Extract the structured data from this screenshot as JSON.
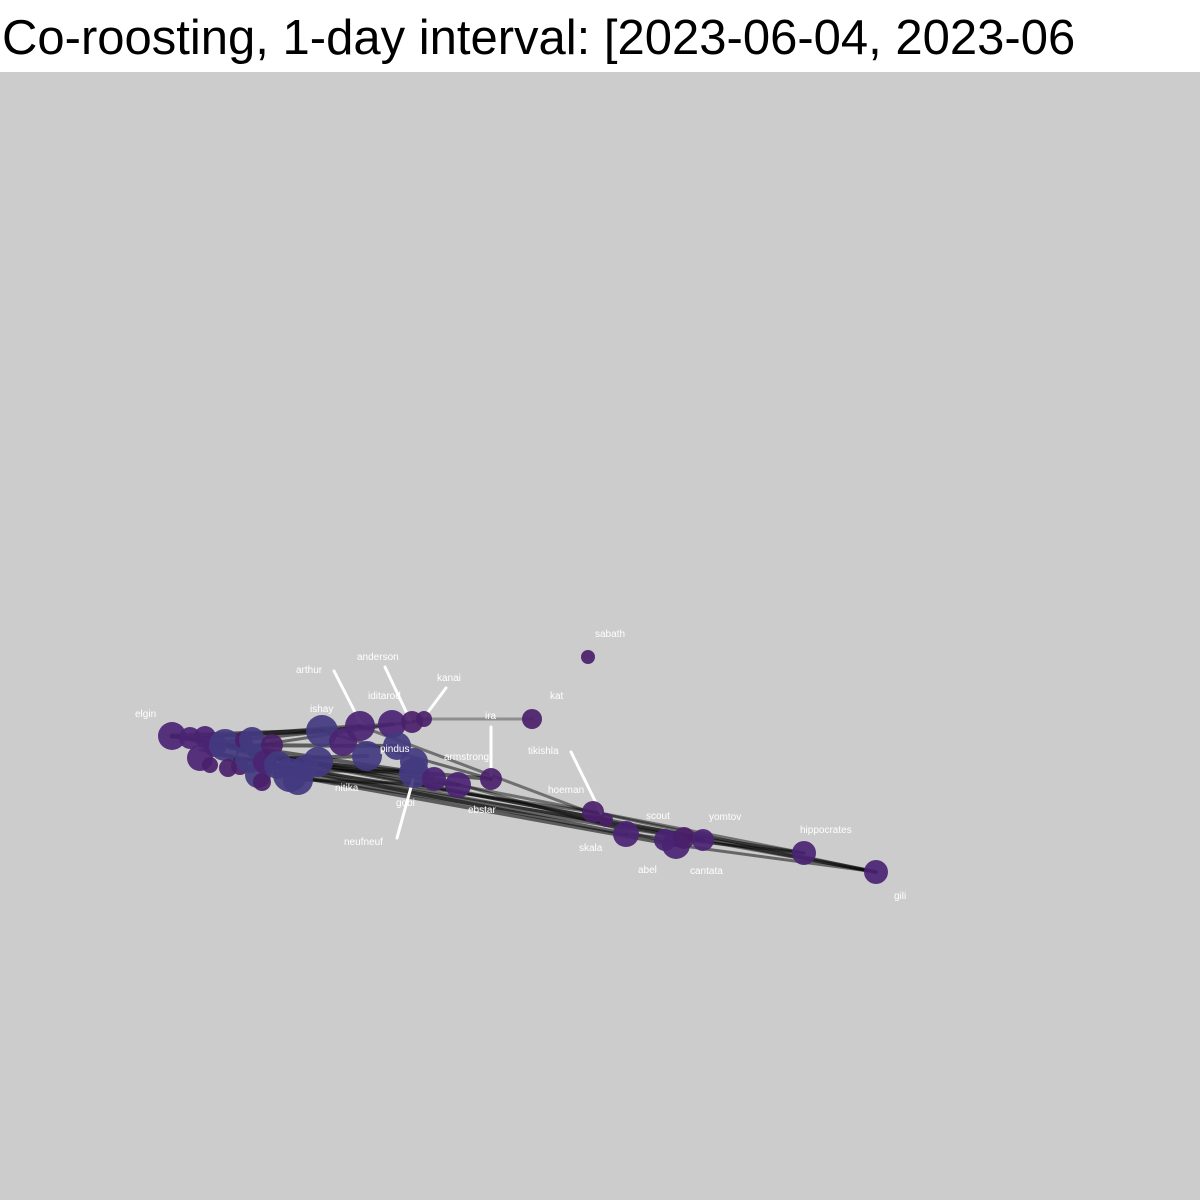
{
  "title": "Co-roosting, 1-day interval: [2023-06-04, 2023-06",
  "colors": {
    "background": "#cccccc",
    "node_fill": "#4a2473",
    "node_fill_large": "#433a80",
    "label": "#ffffff",
    "edge": "#000000",
    "leader_line": "#ffffff"
  },
  "labels": {
    "elgin": "elgin",
    "arthur": "arthur",
    "anderson": "anderson",
    "iditarod": "iditarod",
    "kanai": "kanai",
    "ishay": "ishay",
    "ira": "ira",
    "kat": "kat",
    "sabath": "sabath",
    "pindus": "pindus",
    "armstrong": "armstrong",
    "nitika": "nitika",
    "gobi": "gobi",
    "neufneuf": "neufneuf",
    "ebstar": "ebstar",
    "tikishla": "tikishla",
    "hoeman": "hoeman",
    "scout": "scout",
    "yomtov": "yomtov",
    "skala": "skala",
    "abel": "abel",
    "cantata": "cantata",
    "hippocrates": "hippocrates",
    "gili": "gili"
  }
}
